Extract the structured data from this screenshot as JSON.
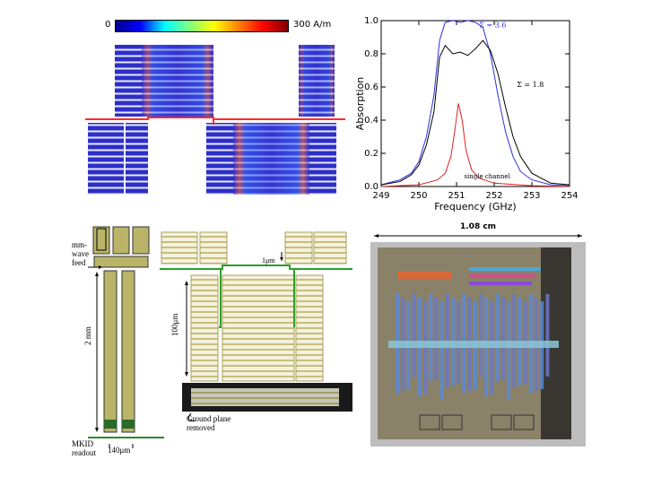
{
  "colorbar": {
    "min_label": "0",
    "max_label": "300 A/m"
  },
  "photo": {
    "scale_label": "1.08 cm"
  },
  "layout_labels": {
    "mmwave_feed": [
      "mm-",
      "wave",
      "feed"
    ],
    "length_2mm": "2 mm",
    "mkid_readout": [
      "MKID",
      "readout"
    ],
    "width_140um": "140μm",
    "gap_1um": "1μm",
    "height_100um": "100μm",
    "ground_plane": [
      "Ground plane",
      "removed"
    ]
  },
  "chart_data": {
    "type": "line",
    "xlabel": "Frequency (GHz)",
    "ylabel": "Absorption",
    "xlim": [
      249,
      254
    ],
    "ylim": [
      0.0,
      1.0
    ],
    "xticks": [
      249,
      250,
      251,
      252,
      253,
      254
    ],
    "yticks": [
      0.0,
      0.2,
      0.4,
      0.6,
      0.8,
      1.0
    ],
    "series": [
      {
        "name": "Σ = 3.6",
        "color": "#3030e0",
        "x": [
          249.0,
          249.5,
          249.8,
          250.0,
          250.2,
          250.4,
          250.55,
          250.7,
          250.9,
          251.1,
          251.3,
          251.5,
          251.7,
          251.9,
          252.1,
          252.3,
          252.5,
          252.7,
          253.0,
          253.5,
          254.0
        ],
        "y": [
          0.01,
          0.04,
          0.08,
          0.15,
          0.3,
          0.55,
          0.88,
          0.99,
          1.0,
          0.99,
          1.0,
          0.99,
          0.96,
          0.8,
          0.55,
          0.33,
          0.18,
          0.09,
          0.04,
          0.01,
          0.005
        ]
      },
      {
        "name": "Σ = 1.8",
        "color": "#000000",
        "x": [
          249.0,
          249.5,
          249.8,
          250.0,
          250.2,
          250.4,
          250.55,
          250.7,
          250.9,
          251.1,
          251.3,
          251.5,
          251.7,
          251.9,
          252.1,
          252.3,
          252.5,
          252.7,
          253.0,
          253.5,
          254.0
        ],
        "y": [
          0.01,
          0.03,
          0.07,
          0.13,
          0.25,
          0.45,
          0.78,
          0.85,
          0.8,
          0.81,
          0.79,
          0.83,
          0.88,
          0.82,
          0.68,
          0.48,
          0.3,
          0.18,
          0.08,
          0.02,
          0.01
        ]
      },
      {
        "name": "single channel",
        "color": "#e02020",
        "x": [
          249.0,
          250.0,
          250.5,
          250.7,
          250.85,
          250.95,
          251.05,
          251.15,
          251.25,
          251.4,
          251.6,
          252.0,
          253.0,
          254.0
        ],
        "y": [
          0.0,
          0.01,
          0.04,
          0.08,
          0.18,
          0.33,
          0.5,
          0.4,
          0.22,
          0.1,
          0.05,
          0.02,
          0.005,
          0.0
        ]
      }
    ],
    "annotations": [
      "Σ = 3.6",
      "Σ = 1.8",
      "single channel"
    ]
  }
}
